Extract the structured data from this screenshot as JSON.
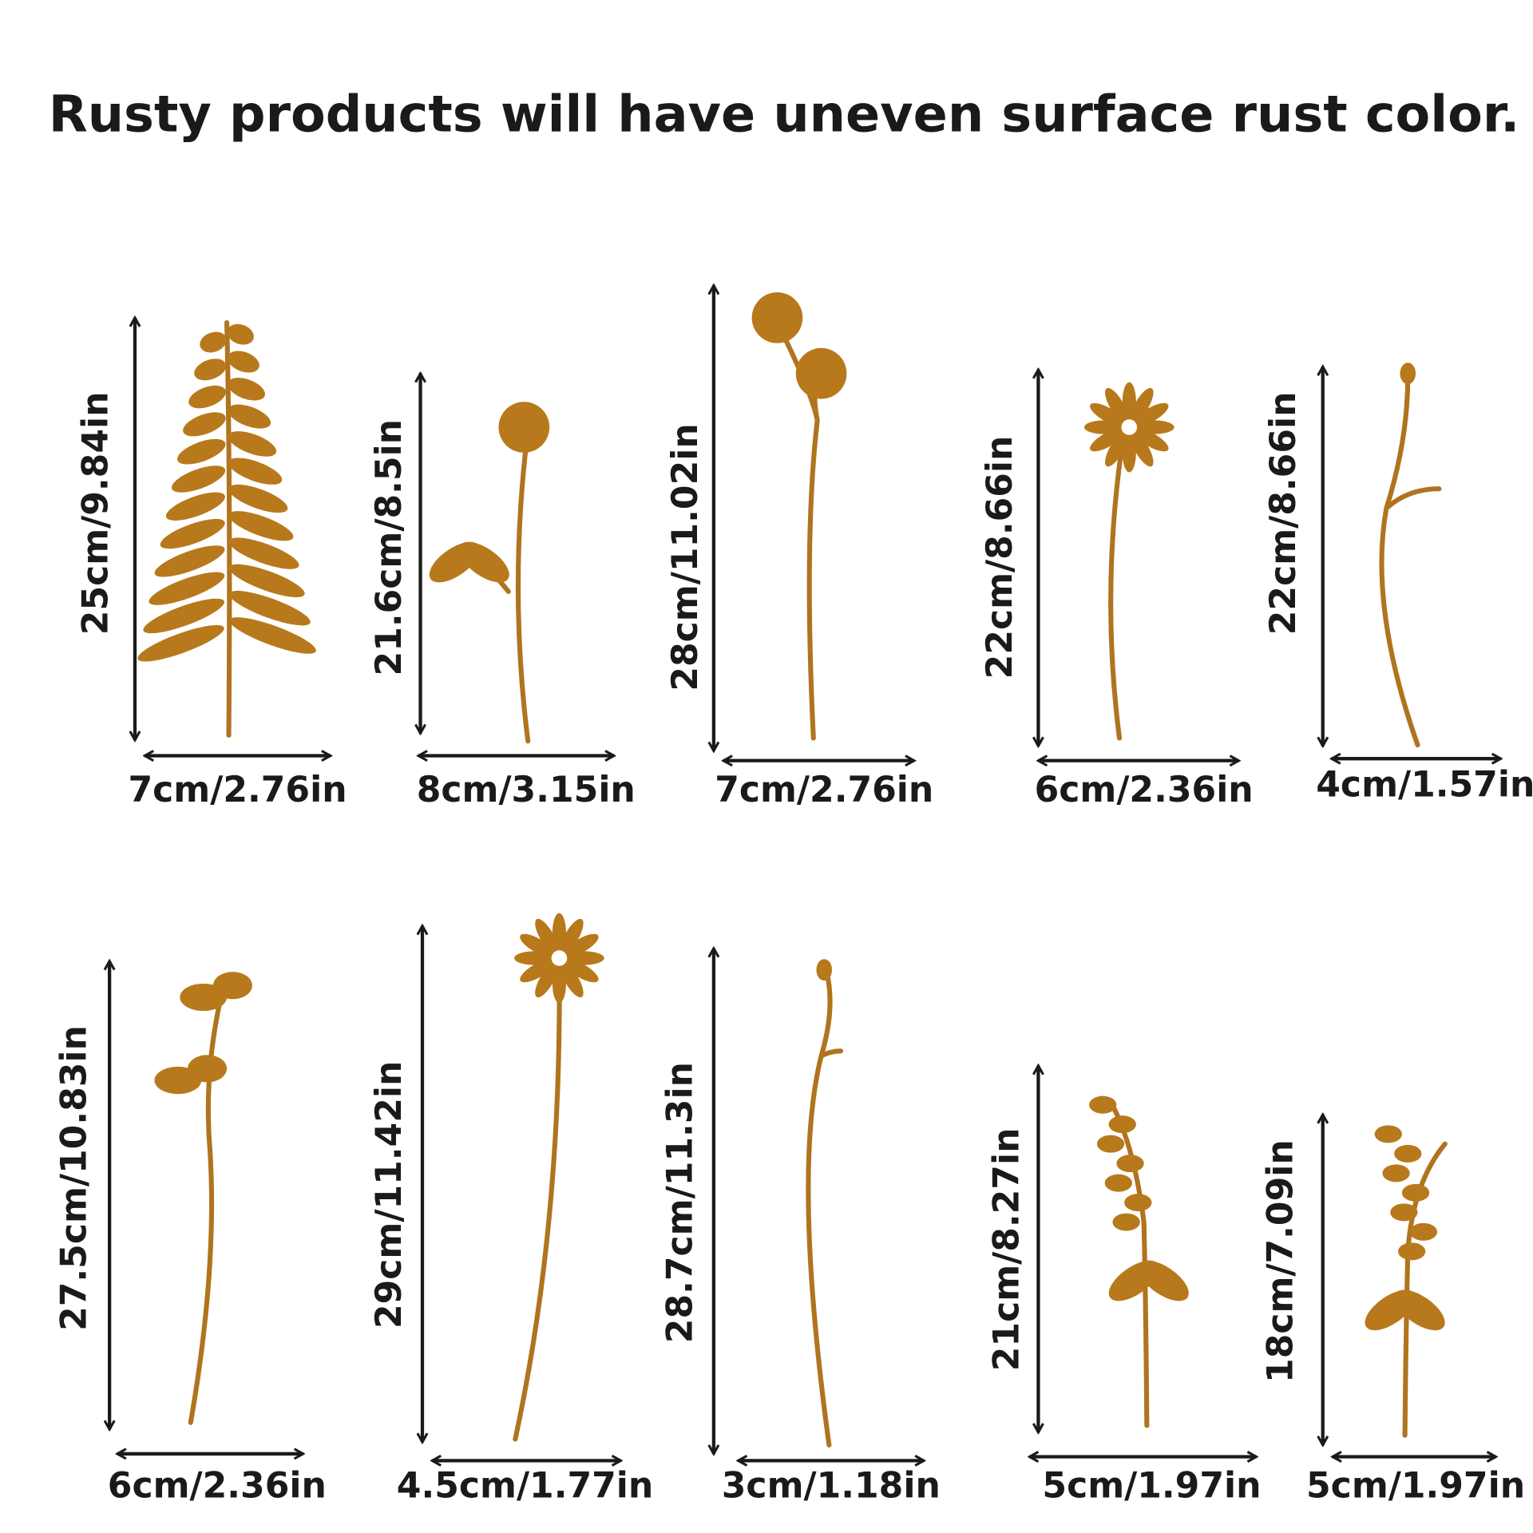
{
  "header": {
    "title": "Rusty products will have uneven surface rust color."
  },
  "items": [
    {
      "height": "25cm/9.84in",
      "width": "7cm/2.76in"
    },
    {
      "height": "21.6cm/8.5in",
      "width": "8cm/3.15in"
    },
    {
      "height": "28cm/11.02in",
      "width": "7cm/2.76in"
    },
    {
      "height": "22cm/8.66in",
      "width": "6cm/2.36in"
    },
    {
      "height": "22cm/8.66in",
      "width": "4cm/1.57in"
    },
    {
      "height": "27.5cm/10.83in",
      "width": "6cm/2.36in"
    },
    {
      "height": "29cm/11.42in",
      "width": "4.5cm/1.77in"
    },
    {
      "height": "28.7cm/11.3in",
      "width": "3cm/1.18in"
    },
    {
      "height": "21cm/8.27in",
      "width": "5cm/1.97in"
    },
    {
      "height": "18cm/7.09in",
      "width": "5cm/1.97in"
    }
  ]
}
